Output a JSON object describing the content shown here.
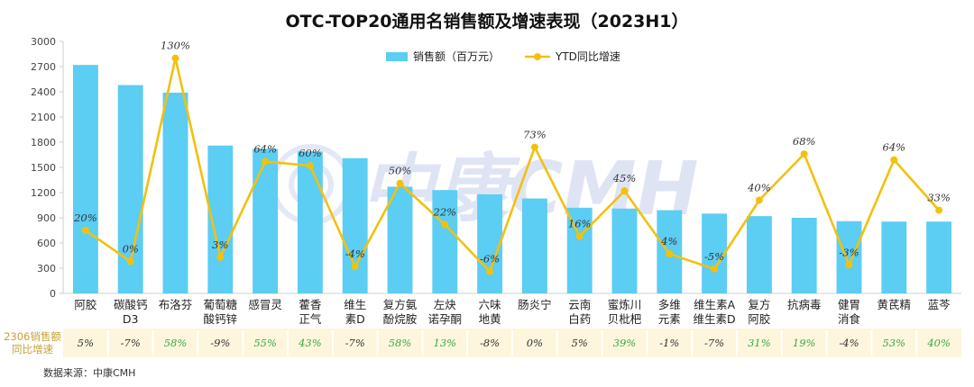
{
  "chart_data": {
    "type": "bar+line",
    "title": "OTC-TOP20通用名销售额及增速表现（2023H1）",
    "categories": [
      "阿胶",
      "碳酸钙D3",
      "布洛芬",
      "葡萄糖酸钙锌",
      "感冒灵",
      "藿香正气",
      "维生素D",
      "复方氨酚烷胺",
      "左炔诺孕酮",
      "六味地黄",
      "肠炎宁",
      "云南白药",
      "蜜炼川贝枇杷",
      "多维元素",
      "维生素A维生素D",
      "复方阿胶",
      "抗病毒",
      "健胃消食",
      "黄芪精",
      "蓝芩"
    ],
    "category_lines": [
      [
        "阿胶"
      ],
      [
        "碳酸钙",
        "D3"
      ],
      [
        "布洛芬"
      ],
      [
        "葡萄糖",
        "酸钙锌"
      ],
      [
        "感冒灵"
      ],
      [
        "藿香",
        "正气"
      ],
      [
        "维生",
        "素D"
      ],
      [
        "复方氨",
        "酚烷胺"
      ],
      [
        "左炔",
        "诺孕酮"
      ],
      [
        "六味",
        "地黄"
      ],
      [
        "肠炎宁"
      ],
      [
        "云南",
        "白药"
      ],
      [
        "蜜炼川",
        "贝枇杷"
      ],
      [
        "多维",
        "元素"
      ],
      [
        "维生素A",
        "维生素D"
      ],
      [
        "复方",
        "阿胶"
      ],
      [
        "抗病毒"
      ],
      [
        "健胃",
        "消食"
      ],
      [
        "黄芪精"
      ],
      [
        "蓝芩"
      ]
    ],
    "series": [
      {
        "name": "销售额（百万元）",
        "kind": "bar",
        "color": "#5ccdf3",
        "values": [
          2720,
          2480,
          2390,
          1760,
          1720,
          1690,
          1610,
          1270,
          1230,
          1180,
          1130,
          1020,
          1010,
          990,
          950,
          920,
          900,
          860,
          855,
          855
        ]
      },
      {
        "name": "YTD同比增速",
        "kind": "line",
        "color": "#f2c10d",
        "values": [
          750,
          380,
          2800,
          430,
          1570,
          1520,
          320,
          1310,
          820,
          260,
          1740,
          680,
          1220,
          470,
          290,
          1110,
          1660,
          340,
          1590,
          990
        ],
        "labels": [
          "20%",
          "0%",
          "130%",
          "3%",
          "64%",
          "60%",
          "-4%",
          "50%",
          "22%",
          "-6%",
          "73%",
          "16%",
          "45%",
          "4%",
          "-5%",
          "40%",
          "68%",
          "-3%",
          "64%",
          "33%"
        ]
      }
    ],
    "ylim": [
      0,
      3000
    ],
    "yticks": [
      "0",
      "300",
      "600",
      "900",
      "1200",
      "1500",
      "1800",
      "2100",
      "2400",
      "2700",
      "3000"
    ],
    "table_row": {
      "label_lines": [
        "2306销售额",
        "同比增速"
      ],
      "values": [
        "5%",
        "-7%",
        "58%",
        "-9%",
        "55%",
        "43%",
        "-7%",
        "58%",
        "13%",
        "-8%",
        "0%",
        "5%",
        "39%",
        "-1%",
        "-7%",
        "31%",
        "19%",
        "-4%",
        "53%",
        "40%"
      ],
      "positive_color": "#3aa84a",
      "negative_color": "#333333"
    },
    "legend_position": "top-center",
    "grid": false
  },
  "watermark": "中康CMH",
  "source": "数据来源：中康CMH"
}
